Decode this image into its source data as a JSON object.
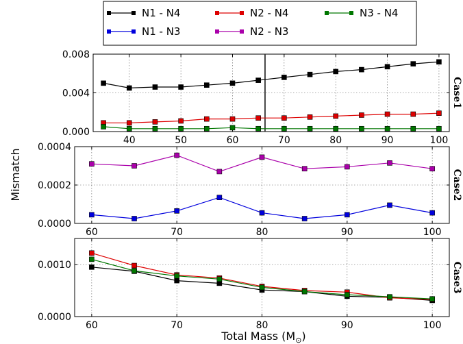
{
  "chart_data": {
    "type": "line",
    "ylabel": "Mismatch",
    "xlabel": "Total Mass (M",
    "xlabel_sub": "⊙",
    "xlabel_close": ")",
    "legend": {
      "placement": "top-center",
      "entries": [
        {
          "label": "N1 - N4",
          "color": "#000000"
        },
        {
          "label": "N2 - N4",
          "color": "#dd0000"
        },
        {
          "label": "N3 - N4",
          "color": "#007700"
        },
        {
          "label": "N1 - N3",
          "color": "#0000dd"
        },
        {
          "label": "N2 - N3",
          "color": "#aa00aa"
        }
      ]
    },
    "panels": [
      {
        "label": "Case1",
        "xlim": [
          33,
          102
        ],
        "ylim": [
          0,
          0.008
        ],
        "xticks": [
          40,
          50,
          60,
          70,
          80,
          90,
          100
        ],
        "xtick_labels": [
          "40",
          "50",
          "60",
          "70",
          "80",
          "90",
          "100"
        ],
        "yticks": [
          0,
          0.004,
          0.008
        ],
        "ytick_labels": [
          "0.000",
          "0.004",
          "0.008"
        ],
        "vline_x": 66.3,
        "x": [
          35,
          40,
          45,
          50,
          55,
          60,
          65,
          70,
          75,
          80,
          85,
          90,
          95,
          100
        ],
        "series": [
          {
            "name": "N1 - N4",
            "color": "#000000",
            "values": [
              0.005,
              0.0045,
              0.0046,
              0.0046,
              0.0048,
              0.005,
              0.0053,
              0.0056,
              0.0059,
              0.0062,
              0.0064,
              0.0067,
              0.007,
              0.0072
            ]
          },
          {
            "name": "N2 - N4",
            "color": "#dd0000",
            "values": [
              0.0009,
              0.0009,
              0.001,
              0.0011,
              0.0013,
              0.0013,
              0.0014,
              0.0014,
              0.0015,
              0.0016,
              0.0017,
              0.0018,
              0.0018,
              0.0019
            ]
          },
          {
            "name": "N3 - N4",
            "color": "#007700",
            "values": [
              0.0005,
              0.0003,
              0.0003,
              0.0003,
              0.0003,
              0.0004,
              0.0003,
              0.0003,
              0.0003,
              0.0003,
              0.0003,
              0.0003,
              0.0003,
              0.0003
            ]
          }
        ]
      },
      {
        "label": "Case2",
        "xlim": [
          58,
          102
        ],
        "ylim": [
          0,
          0.0004
        ],
        "xticks": [
          60,
          70,
          80,
          90,
          100
        ],
        "xtick_labels": [
          "60",
          "70",
          "80",
          "90",
          "100"
        ],
        "yticks": [
          0,
          0.0002,
          0.0004
        ],
        "ytick_labels": [
          "0.0000",
          "0.0002",
          "0.0004"
        ],
        "x": [
          60,
          65,
          70,
          75,
          80,
          85,
          90,
          95,
          100
        ],
        "series": [
          {
            "name": "N1 - N3",
            "color": "#0000dd",
            "values": [
              4.5e-05,
              2.5e-05,
              6.5e-05,
              0.000135,
              5.5e-05,
              2.5e-05,
              4.5e-05,
              9.5e-05,
              5.5e-05
            ]
          },
          {
            "name": "N2 - N3",
            "color": "#aa00aa",
            "values": [
              0.00031,
              0.0003,
              0.000355,
              0.00027,
              0.000345,
              0.000285,
              0.000295,
              0.000315,
              0.000285
            ]
          }
        ]
      },
      {
        "label": "Case3",
        "xlim": [
          58,
          102
        ],
        "ylim": [
          0,
          0.0015
        ],
        "xticks": [
          60,
          70,
          80,
          90,
          100
        ],
        "xtick_labels": [
          "60",
          "70",
          "80",
          "90",
          "100"
        ],
        "yticks": [
          0,
          0.001
        ],
        "ytick_labels": [
          "0.0000",
          "0.0010"
        ],
        "x": [
          60,
          65,
          70,
          75,
          80,
          85,
          90,
          95,
          100
        ],
        "series": [
          {
            "name": "N1 - N4",
            "color": "#000000",
            "values": [
              0.00095,
              0.00087,
              0.00069,
              0.00064,
              0.00051,
              0.00048,
              0.00039,
              0.00037,
              0.00031
            ]
          },
          {
            "name": "N2 - N4",
            "color": "#dd0000",
            "values": [
              0.00122,
              0.00098,
              0.0008,
              0.00074,
              0.00058,
              0.0005,
              0.00047,
              0.00036,
              0.00033
            ]
          },
          {
            "name": "N3 - N4",
            "color": "#007700",
            "values": [
              0.0011,
              0.00088,
              0.00078,
              0.00072,
              0.00056,
              0.00048,
              0.00042,
              0.00038,
              0.00034
            ]
          }
        ]
      }
    ]
  }
}
